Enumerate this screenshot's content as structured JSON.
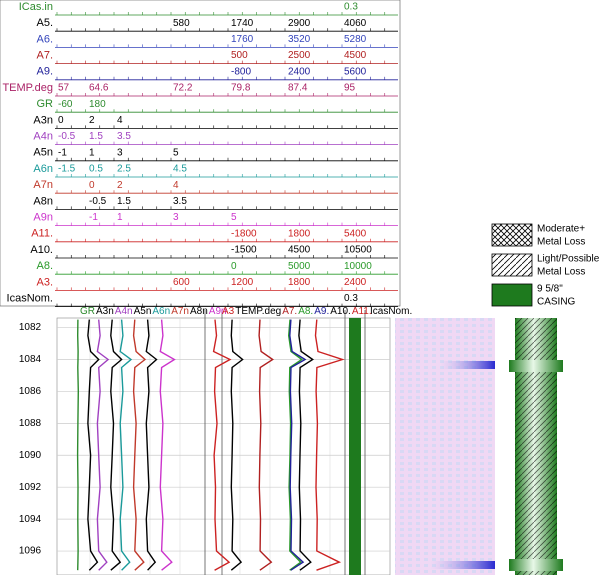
{
  "header": {
    "rows": [
      {
        "name": "ICas.in",
        "color": "#2e8b2e",
        "cells": [
          null,
          null,
          null,
          null,
          null,
          null,
          0.3
        ]
      },
      {
        "name": "A5.",
        "color": "#000000",
        "cells": [
          null,
          null,
          null,
          580,
          1740,
          2900,
          4060
        ]
      },
      {
        "name": "A6.",
        "color": "#3344bb",
        "cells": [
          null,
          null,
          null,
          null,
          1760,
          3520,
          5280
        ]
      },
      {
        "name": "A7.",
        "color": "#b02020",
        "cells": [
          null,
          null,
          null,
          null,
          500,
          2500,
          4500
        ]
      },
      {
        "name": "A9.",
        "color": "#22229a",
        "cells": [
          null,
          null,
          null,
          null,
          -800,
          2400,
          5600
        ]
      },
      {
        "name": "TEMP.deg",
        "color": "#aa2266",
        "cells": [
          57,
          64.6,
          null,
          72.2,
          79.8,
          87.4,
          95
        ]
      },
      {
        "name": "GR",
        "color": "#2e8b2e",
        "cells": [
          -60,
          180,
          null,
          null,
          null,
          null,
          null
        ]
      },
      {
        "name": "A3n",
        "color": "#000000",
        "cells": [
          0,
          2,
          4,
          null,
          null,
          null,
          null
        ]
      },
      {
        "name": "A4n",
        "color": "#a040c0",
        "cells": [
          -0.5,
          1.5,
          3.5,
          null,
          null,
          null,
          null
        ]
      },
      {
        "name": "A5n",
        "color": "#000000",
        "cells": [
          -1,
          1,
          3,
          5,
          null,
          null,
          null
        ]
      },
      {
        "name": "A6n",
        "color": "#1a9a9a",
        "cells": [
          -1.5,
          0.5,
          2.5,
          4.5,
          null,
          null,
          null
        ]
      },
      {
        "name": "A7n",
        "color": "#c0392b",
        "cells": [
          null,
          0,
          2,
          4,
          null,
          null,
          null
        ]
      },
      {
        "name": "A8n",
        "color": "#000000",
        "cells": [
          null,
          -0.5,
          1.5,
          3.5,
          null,
          null,
          null
        ]
      },
      {
        "name": "A9n",
        "color": "#cc33cc",
        "cells": [
          null,
          -1,
          1,
          3,
          5,
          null,
          null
        ]
      },
      {
        "name": "A11.",
        "color": "#cc2222",
        "cells": [
          null,
          null,
          null,
          null,
          -1800,
          1800,
          5400
        ]
      },
      {
        "name": "A10.",
        "color": "#000000",
        "cells": [
          null,
          null,
          null,
          null,
          -1500,
          4500,
          10500
        ]
      },
      {
        "name": "A8.",
        "color": "#2a9a2a",
        "cells": [
          null,
          null,
          null,
          null,
          0,
          5000,
          10000
        ]
      },
      {
        "name": "A3.",
        "color": "#cc2222",
        "cells": [
          null,
          null,
          null,
          600,
          1200,
          1800,
          2400
        ]
      },
      {
        "name": "IcasNom.",
        "color": "#000000",
        "cells": [
          null,
          null,
          null,
          null,
          null,
          null,
          0.3
        ]
      }
    ]
  },
  "chart_data": {
    "type": "log",
    "ylim": [
      1081.4,
      1097.3
    ],
    "yticks": [
      1082,
      1084,
      1086,
      1088,
      1090,
      1092,
      1094,
      1096
    ],
    "depths": [
      1081.5,
      1082.5,
      1083.5,
      1084,
      1084.5,
      1086,
      1088,
      1090,
      1092,
      1094,
      1096,
      1096.7,
      1097.2
    ],
    "tracks": [
      {
        "curves": [
          {
            "name": "GR",
            "color": "#2e8b2e",
            "xlim": [
              -60,
              1200
            ],
            "values": [
              118,
              116,
              120,
              119,
              117,
              121,
              118,
              115,
              119,
              117,
              120,
              118,
              116
            ]
          },
          {
            "name": "A3n",
            "color": "#000000",
            "xlim": [
              0,
              11
            ],
            "values": [
              2.4,
              2.3,
              2.5,
              3.1,
              2.5,
              2.4,
              2.3,
              2.5,
              2.4,
              2.3,
              2.5,
              3.0,
              2.4
            ]
          },
          {
            "name": "A4n",
            "color": "#a040c0",
            "xlim": [
              -0.5,
              10.5
            ],
            "values": [
              2.6,
              2.7,
              2.5,
              3.3,
              2.6,
              2.7,
              2.5,
              2.6,
              2.7,
              2.5,
              2.6,
              3.2,
              2.6
            ]
          },
          {
            "name": "A5n",
            "color": "#000000",
            "xlim": [
              -1,
              10
            ],
            "values": [
              3.1,
              3.0,
              3.2,
              3.8,
              3.1,
              3.0,
              3.2,
              3.1,
              3.0,
              3.2,
              3.1,
              3.7,
              3.0
            ]
          },
          {
            "name": "A6n",
            "color": "#1a9a9a",
            "xlim": [
              -1.5,
              9.5
            ],
            "values": [
              3.3,
              3.4,
              3.2,
              4.0,
              3.3,
              3.4,
              3.2,
              3.3,
              3.4,
              3.2,
              3.3,
              3.9,
              3.3
            ]
          },
          {
            "name": "A7n",
            "color": "#c0392b",
            "xlim": [
              -2.2,
              9.4
            ],
            "values": [
              3.9,
              3.8,
              4.0,
              4.7,
              3.9,
              3.8,
              4.0,
              3.9,
              3.8,
              4.0,
              3.9,
              4.6,
              3.9
            ]
          },
          {
            "name": "A8n",
            "color": "#000000",
            "xlim": [
              -2.7,
              8.9
            ],
            "values": [
              4.4,
              4.5,
              4.3,
              5.1,
              4.4,
              4.5,
              4.3,
              4.4,
              4.5,
              4.3,
              4.4,
              5.0,
              4.4
            ]
          },
          {
            "name": "A9n",
            "color": "#cc33cc",
            "xlim": [
              -3.2,
              8.4
            ],
            "values": [
              5.0,
              5.1,
              4.9,
              6.0,
              5.0,
              4.9,
              5.1,
              5.0,
              4.9,
              5.1,
              5.0,
              5.8,
              5.0
            ]
          }
        ]
      },
      {
        "curves": [
          {
            "name": "A3",
            "color": "#cc2222",
            "xlim": [
              941,
              2390
            ],
            "values": [
              1045,
              1060,
              1030,
              1200,
              1050,
              1040,
              1065,
              1035,
              1050,
              1045,
              1060,
              1190,
              1040
            ]
          },
          {
            "name": "TEMP.deg",
            "color": "#000000",
            "xlim": [
              76.5,
              95.1
            ],
            "values": [
              80.1,
              80.0,
              80.2,
              81.5,
              80.1,
              80.0,
              80.2,
              80.1,
              80.0,
              80.2,
              80.1,
              81.3,
              80.0
            ]
          },
          {
            "name": "A7.",
            "color": "#b02020",
            "xlim": [
              -377,
              4536
            ],
            "values": [
              1553,
              1520,
              1590,
              2000,
              1560,
              1540,
              1580,
              1550,
              1530,
              1570,
              1555,
              1950,
              1550
            ]
          },
          {
            "name": "A8.",
            "color": "#2a9a2a",
            "xlim": [
              -2193,
              10088
            ],
            "values": [
              5260,
              5150,
              5350,
              6300,
              5250,
              5200,
              5320,
              5260,
              5180,
              5300,
              5250,
              6200,
              5240
            ]
          },
          {
            "name": "A9.",
            "color": "#22229a",
            "xlim": [
              -2203,
              4652
            ],
            "values": [
              2005,
              1950,
              2060,
              2700,
              2010,
              1980,
              2040,
              2000,
              1970,
              2030,
              2010,
              2600,
              2000
            ]
          },
          {
            "name": "A10.",
            "color": "#000000",
            "xlim": [
              -4132,
              10600
            ],
            "values": [
              5870,
              5750,
              5990,
              7200,
              5880,
              5800,
              5950,
              5860,
              5790,
              5920,
              5870,
              7000,
              5850
            ]
          },
          {
            "name": "A11.",
            "color": "#cc2222",
            "xlim": [
              -3379,
              5463
            ],
            "values": [
              3680,
              3600,
              3760,
              5300,
              3690,
              3640,
              3720,
              3670,
              3630,
              3710,
              3680,
              5100,
              3660
            ]
          }
        ]
      },
      {
        "curves": [
          {
            "name": "IcasNom.",
            "color": "#000000"
          }
        ]
      }
    ]
  },
  "legend": [
    {
      "lines": [
        "Moderate+",
        "Metal Loss"
      ]
    },
    {
      "lines": [
        "Light/Possible",
        "Metal Loss"
      ]
    },
    {
      "lines": [
        "9 5/8\"",
        "CASING"
      ]
    }
  ]
}
